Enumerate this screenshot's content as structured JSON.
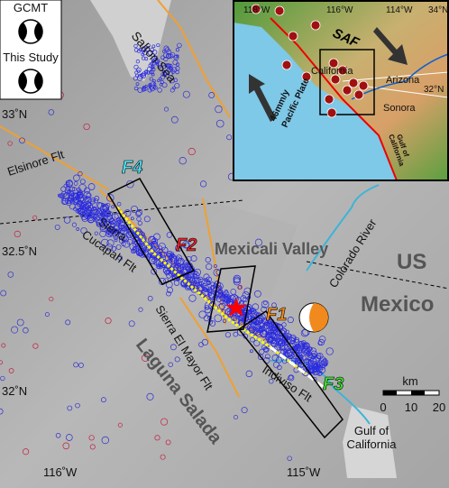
{
  "legend": {
    "gcmt": "GCMT",
    "this_study": "This Study"
  },
  "main_map": {
    "salton_sea": "Salton Sea",
    "elsinore": "Elsinore Flt",
    "f4": "F4",
    "f2": "F2",
    "f1": "F1",
    "f3": "F3",
    "sierra_cucapah": [
      "Sierra",
      "Cucapah Flt"
    ],
    "mexicali": "Mexicali Valley",
    "colorado": "Colorado River",
    "us": "US",
    "mexico": "Mexico",
    "sierra_el_mayor": "Sierra El Mayor Flt",
    "laguna_salada": "Laguna Salada",
    "indiviso": "Indiviso Flt",
    "gulf": [
      "Gulf of",
      "California"
    ]
  },
  "axes": {
    "lat": [
      "33˚N",
      "32.5˚N",
      "32˚N"
    ],
    "lon": [
      "116˚W",
      "115˚W"
    ]
  },
  "scale_bar": {
    "unit": "km",
    "ticks": [
      "0",
      "10",
      "20"
    ]
  },
  "inset": {
    "lon": [
      "118°W",
      "116°W",
      "114°W"
    ],
    "lat": [
      "34°N",
      "32°N"
    ],
    "saf": "SAF",
    "california": "California",
    "arizona": "Arizona",
    "sonora": "Sonora",
    "plate": [
      "46mm/y",
      "Pacific Plate"
    ],
    "gulf": [
      "Gulf of",
      "California"
    ]
  }
}
